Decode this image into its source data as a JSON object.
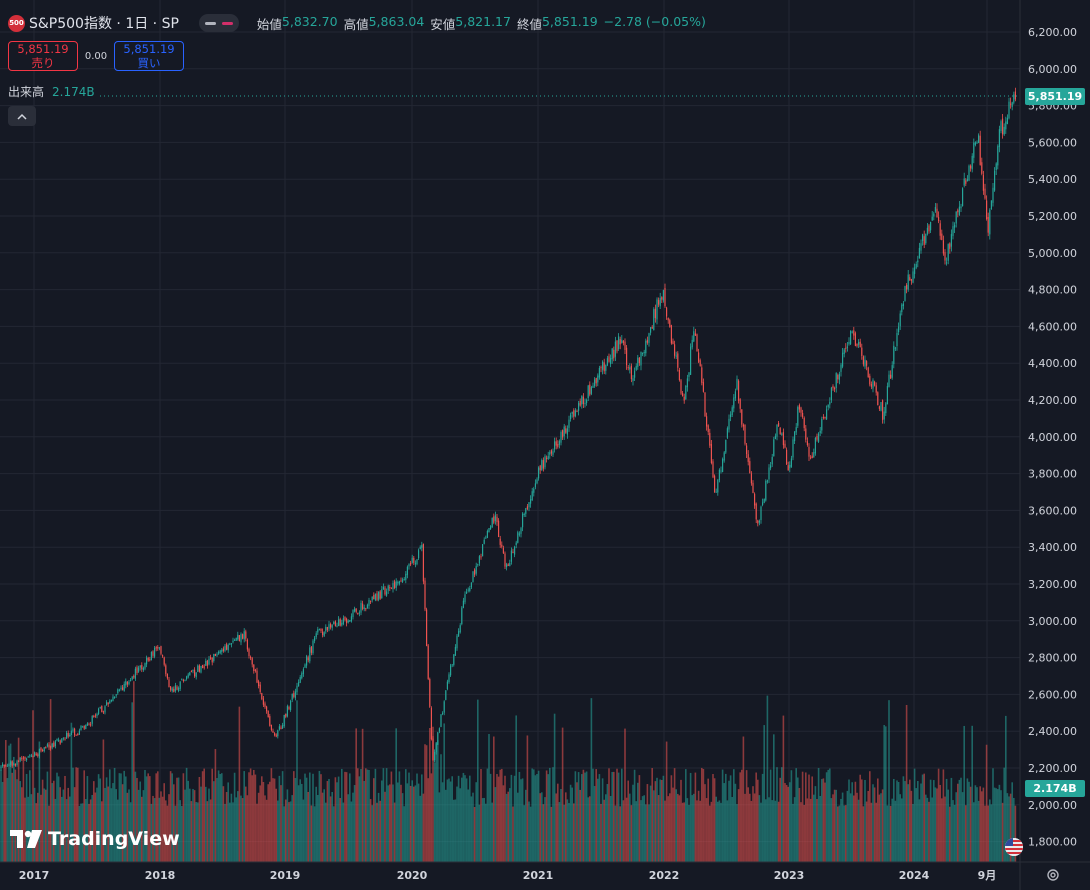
{
  "symbol": {
    "badge": "500",
    "title": "S&P500指数 · 1日 · SP"
  },
  "ohlc": {
    "open_label": "始値",
    "open": "5,832.70",
    "high_label": "高値",
    "high": "5,863.04",
    "low_label": "安値",
    "low": "5,821.17",
    "close_label": "終値",
    "close": "5,851.19",
    "change": "−2.78 (−0.05%)"
  },
  "trade": {
    "sell_price": "5,851.19",
    "sell_label": "売り",
    "spread": "0.00",
    "buy_price": "5,851.19",
    "buy_label": "買い"
  },
  "volume": {
    "label": "出来高",
    "value": "2.174B"
  },
  "last_price_tag": "5,851.19",
  "volume_tag": "2.174B",
  "logo_text": "TradingView",
  "colors": {
    "up": "#26a69a",
    "down": "#ef5350",
    "background": "#151924",
    "grid": "#232733"
  },
  "icons": {
    "collapse": "chevron-up-icon",
    "settings": "gear-icon",
    "flag": "us-flag-icon"
  },
  "chart_data": {
    "type": "candlestick",
    "x_ticks": [
      "2017",
      "2018",
      "2019",
      "2020",
      "2021",
      "2022",
      "2023",
      "2024",
      "9月"
    ],
    "y_ticks": [
      "6,200.00",
      "6,000.00",
      "5,800.00",
      "5,600.00",
      "5,400.00",
      "5,200.00",
      "5,000.00",
      "4,800.00",
      "4,600.00",
      "4,400.00",
      "4,200.00",
      "4,000.00",
      "3,800.00",
      "3,600.00",
      "3,400.00",
      "3,200.00",
      "3,000.00",
      "2,800.00",
      "2,600.00",
      "2,400.00",
      "2,200.00",
      "2,000.00",
      "1,800.00"
    ],
    "ylim": [
      1750,
      6270
    ],
    "last_price": 5851.19,
    "series": [
      {
        "date": "2016-11",
        "close": 2200
      },
      {
        "date": "2017-01",
        "close": 2270
      },
      {
        "date": "2017-06",
        "close": 2430
      },
      {
        "date": "2018-01",
        "close": 2860
      },
      {
        "date": "2018-02",
        "close": 2620
      },
      {
        "date": "2018-09",
        "close": 2930
      },
      {
        "date": "2018-12",
        "close": 2350
      },
      {
        "date": "2019-04",
        "close": 2930
      },
      {
        "date": "2019-07",
        "close": 3020
      },
      {
        "date": "2019-12",
        "close": 3230
      },
      {
        "date": "2020-02",
        "close": 3390
      },
      {
        "date": "2020-03",
        "close": 2240
      },
      {
        "date": "2020-06",
        "close": 3100
      },
      {
        "date": "2020-09",
        "close": 3580
      },
      {
        "date": "2020-10",
        "close": 3270
      },
      {
        "date": "2021-01",
        "close": 3800
      },
      {
        "date": "2021-09",
        "close": 4530
      },
      {
        "date": "2021-10",
        "close": 4300
      },
      {
        "date": "2022-01",
        "close": 4800
      },
      {
        "date": "2022-03",
        "close": 4170
      },
      {
        "date": "2022-04",
        "close": 4620
      },
      {
        "date": "2022-06",
        "close": 3670
      },
      {
        "date": "2022-08",
        "close": 4305
      },
      {
        "date": "2022-10",
        "close": 3500
      },
      {
        "date": "2022-12",
        "close": 4080
      },
      {
        "date": "2023-01",
        "close": 3810
      },
      {
        "date": "2023-02",
        "close": 4180
      },
      {
        "date": "2023-03",
        "close": 3860
      },
      {
        "date": "2023-07",
        "close": 4590
      },
      {
        "date": "2023-10",
        "close": 4120
      },
      {
        "date": "2023-12",
        "close": 4780
      },
      {
        "date": "2024-03",
        "close": 5260
      },
      {
        "date": "2024-04",
        "close": 4960
      },
      {
        "date": "2024-07",
        "close": 5660
      },
      {
        "date": "2024-08",
        "close": 5120
      },
      {
        "date": "2024-09",
        "close": 5640
      },
      {
        "date": "2024-10",
        "close": 5860
      }
    ],
    "volume_axis_tag": "2.174B"
  }
}
